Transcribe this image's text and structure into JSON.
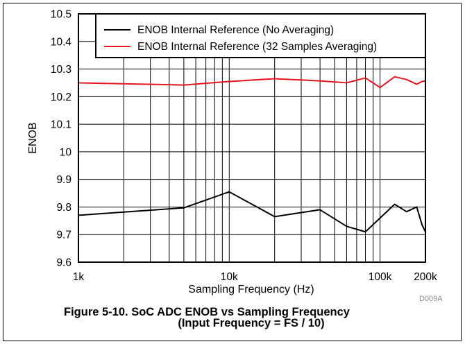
{
  "chart_data": {
    "type": "line",
    "title": "",
    "xlabel": "Sampling Frequency (Hz)",
    "ylabel": "ENOB",
    "xscale": "log",
    "xlim": [
      1000,
      200000
    ],
    "ylim": [
      9.6,
      10.5
    ],
    "grid": true,
    "legend_position": "top-right",
    "xticks": [
      {
        "value": 1000,
        "label": "1k"
      },
      {
        "value": 10000,
        "label": "10k"
      },
      {
        "value": 100000,
        "label": "100k"
      },
      {
        "value": 200000,
        "label": "200k"
      }
    ],
    "yticks": [
      {
        "value": 9.6,
        "label": "9.6"
      },
      {
        "value": 9.7,
        "label": "9.7"
      },
      {
        "value": 9.8,
        "label": "9.8"
      },
      {
        "value": 9.9,
        "label": "9.9"
      },
      {
        "value": 10.0,
        "label": "10"
      },
      {
        "value": 10.1,
        "label": "10.1"
      },
      {
        "value": 10.2,
        "label": "10.2"
      },
      {
        "value": 10.3,
        "label": "10.3"
      },
      {
        "value": 10.4,
        "label": "10.4"
      },
      {
        "value": 10.5,
        "label": "10.5"
      }
    ],
    "series": [
      {
        "name": "ENOB Internal Reference (No Averaging)",
        "color": "#000000",
        "x": [
          1000,
          5000,
          10000,
          20000,
          40000,
          60000,
          80000,
          125000,
          150000,
          175000,
          190000,
          200000
        ],
        "y": [
          9.77,
          9.797,
          9.855,
          9.765,
          9.79,
          9.73,
          9.71,
          9.81,
          9.783,
          9.8,
          9.735,
          9.71
        ]
      },
      {
        "name": "ENOB Internal Reference (32 Samples Averaging)",
        "color": "#e8141e",
        "x": [
          1000,
          5000,
          10000,
          20000,
          40000,
          60000,
          80000,
          100000,
          125000,
          150000,
          175000,
          190000,
          200000
        ],
        "y": [
          10.25,
          10.242,
          10.255,
          10.265,
          10.257,
          10.25,
          10.268,
          10.233,
          10.272,
          10.262,
          10.245,
          10.255,
          10.257
        ]
      }
    ]
  },
  "figure": {
    "code": "D009A",
    "caption_line1": "Figure 5-10. SoC ADC ENOB vs Sampling Frequency",
    "caption_line2": "(Input Frequency = FS / 10)"
  }
}
